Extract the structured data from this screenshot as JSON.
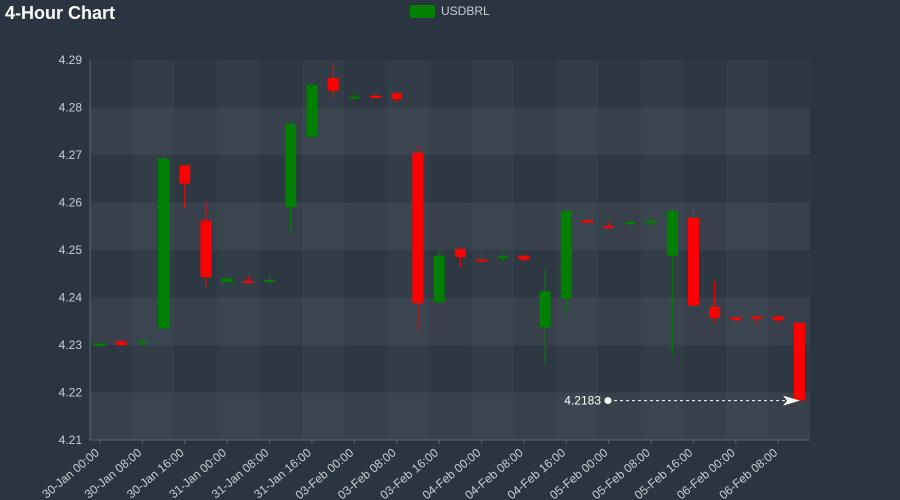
{
  "chart_data": {
    "type": "candlestick",
    "title": "4-Hour Chart",
    "series_name": "USDBRL",
    "ylim": [
      4.21,
      4.29
    ],
    "y_ticks": [
      "4.29",
      "4.28",
      "4.27",
      "4.26",
      "4.25",
      "4.24",
      "4.23",
      "4.22",
      "4.21"
    ],
    "x_tick_labels": [
      "30-Jan 00:00",
      "30-Jan 08:00",
      "30-Jan 16:00",
      "31-Jan 00:00",
      "31-Jan 08:00",
      "31-Jan 16:00",
      "03-Feb 00:00",
      "03-Feb 08:00",
      "03-Feb 16:00",
      "04-Feb 00:00",
      "04-Feb 08:00",
      "04-Feb 16:00",
      "05-Feb 00:00",
      "05-Feb 08:00",
      "05-Feb 16:00",
      "06-Feb 00:00",
      "06-Feb 08:00"
    ],
    "last_price": "4.2183",
    "colors": {
      "up": "#008000",
      "down": "#ff0000",
      "background": "#2b3541"
    },
    "candles": [
      {
        "o": 4.2298,
        "h": 4.2305,
        "l": 4.2295,
        "c": 4.2303
      },
      {
        "o": 4.2308,
        "h": 4.231,
        "l": 4.2297,
        "c": 4.23
      },
      {
        "o": 4.2305,
        "h": 4.231,
        "l": 4.23,
        "c": 4.2307
      },
      {
        "o": 4.2335,
        "h": 4.27,
        "l": 4.233,
        "c": 4.2693
      },
      {
        "o": 4.2678,
        "h": 4.268,
        "l": 4.2588,
        "c": 4.264
      },
      {
        "o": 4.2562,
        "h": 4.2603,
        "l": 4.2422,
        "c": 4.2443
      },
      {
        "o": 4.2432,
        "h": 4.2445,
        "l": 4.243,
        "c": 4.244
      },
      {
        "o": 4.2435,
        "h": 4.2445,
        "l": 4.243,
        "c": 4.2432
      },
      {
        "o": 4.2435,
        "h": 4.2445,
        "l": 4.243,
        "c": 4.2437
      },
      {
        "o": 4.259,
        "h": 4.277,
        "l": 4.2535,
        "c": 4.2765
      },
      {
        "o": 4.2738,
        "h": 4.285,
        "l": 4.2737,
        "c": 4.2848
      },
      {
        "o": 4.2862,
        "h": 4.2895,
        "l": 4.282,
        "c": 4.2835
      },
      {
        "o": 4.282,
        "h": 4.283,
        "l": 4.2818,
        "c": 4.2823
      },
      {
        "o": 4.2825,
        "h": 4.283,
        "l": 4.2818,
        "c": 4.282
      },
      {
        "o": 4.283,
        "h": 4.2832,
        "l": 4.281,
        "c": 4.2818
      },
      {
        "o": 4.2705,
        "h": 4.272,
        "l": 4.233,
        "c": 4.2388
      },
      {
        "o": 4.239,
        "h": 4.25,
        "l": 4.2388,
        "c": 4.2488
      },
      {
        "o": 4.2502,
        "h": 4.2505,
        "l": 4.2465,
        "c": 4.2485
      },
      {
        "o": 4.248,
        "h": 4.249,
        "l": 4.2472,
        "c": 4.2476
      },
      {
        "o": 4.2483,
        "h": 4.249,
        "l": 4.2476,
        "c": 4.2487
      },
      {
        "o": 4.2488,
        "h": 4.249,
        "l": 4.2474,
        "c": 4.248
      },
      {
        "o": 4.2337,
        "h": 4.246,
        "l": 4.2258,
        "c": 4.2413
      },
      {
        "o": 4.2398,
        "h": 4.2585,
        "l": 4.237,
        "c": 4.2582
      },
      {
        "o": 4.2563,
        "h": 4.2565,
        "l": 4.2537,
        "c": 4.2558
      },
      {
        "o": 4.255,
        "h": 4.2558,
        "l": 4.2545,
        "c": 4.2548
      },
      {
        "o": 4.2555,
        "h": 4.2562,
        "l": 4.255,
        "c": 4.2559
      },
      {
        "o": 4.2557,
        "h": 4.2565,
        "l": 4.2548,
        "c": 4.2562
      },
      {
        "o": 4.2488,
        "h": 4.2585,
        "l": 4.228,
        "c": 4.2582
      },
      {
        "o": 4.2568,
        "h": 4.2588,
        "l": 4.2378,
        "c": 4.2383
      },
      {
        "o": 4.238,
        "h": 4.2435,
        "l": 4.2348,
        "c": 4.2357
      },
      {
        "o": 4.2358,
        "h": 4.236,
        "l": 4.2345,
        "c": 4.2353
      },
      {
        "o": 4.236,
        "h": 4.2362,
        "l": 4.2345,
        "c": 4.2355
      },
      {
        "o": 4.236,
        "h": 4.2362,
        "l": 4.2347,
        "c": 4.2352
      },
      {
        "o": 4.2347,
        "h": 4.2348,
        "l": 4.2183,
        "c": 4.2183
      }
    ]
  }
}
